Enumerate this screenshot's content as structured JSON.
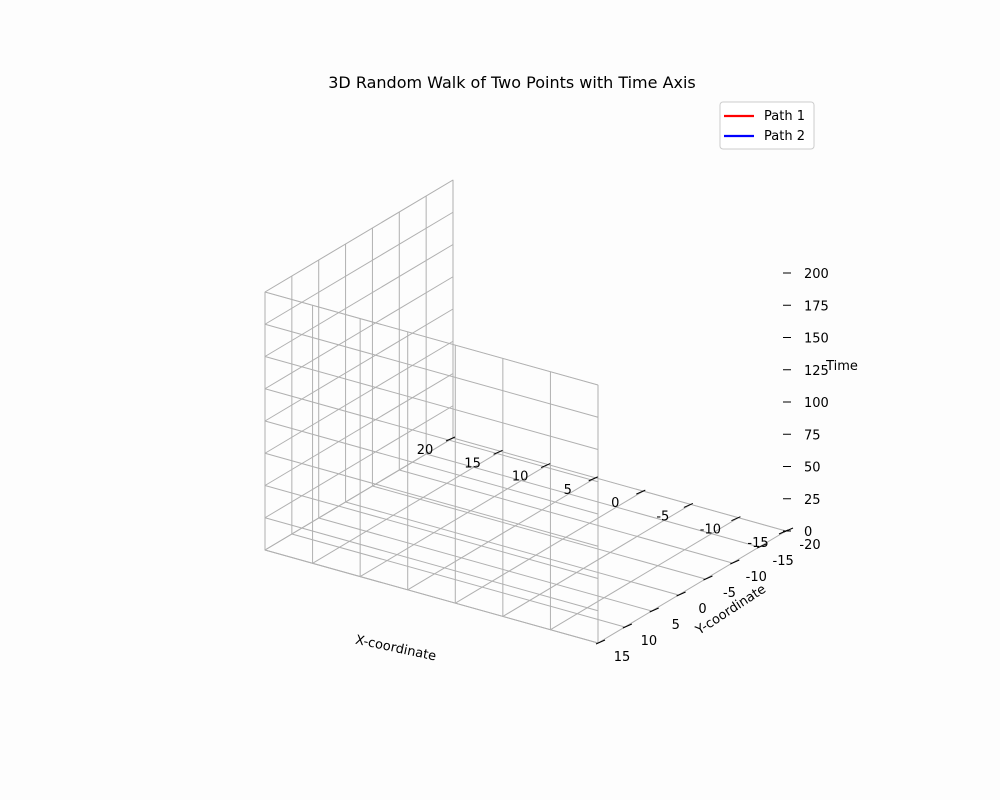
{
  "chart_data": {
    "type": "line",
    "title": "3D Random Walk of Two Points with Time Axis",
    "xlabel": "X-coordinate",
    "ylabel": "Y-coordinate",
    "zlabel": "Time",
    "xlim": [
      -15,
      20
    ],
    "ylim": [
      -20,
      15
    ],
    "zlim": [
      0,
      200
    ],
    "x_ticks": [
      20,
      15,
      10,
      5,
      0,
      -5,
      -10,
      -15
    ],
    "y_ticks": [
      -20,
      -15,
      -10,
      -5,
      0,
      5,
      10,
      15
    ],
    "z_ticks": [
      0,
      25,
      50,
      75,
      100,
      125,
      150,
      175,
      200
    ],
    "grid": true,
    "legend_position": "top-right",
    "series": [
      {
        "name": "Path 1",
        "color": "#ff0000",
        "points": []
      },
      {
        "name": "Path 2",
        "color": "#0000ff",
        "points": []
      }
    ]
  }
}
